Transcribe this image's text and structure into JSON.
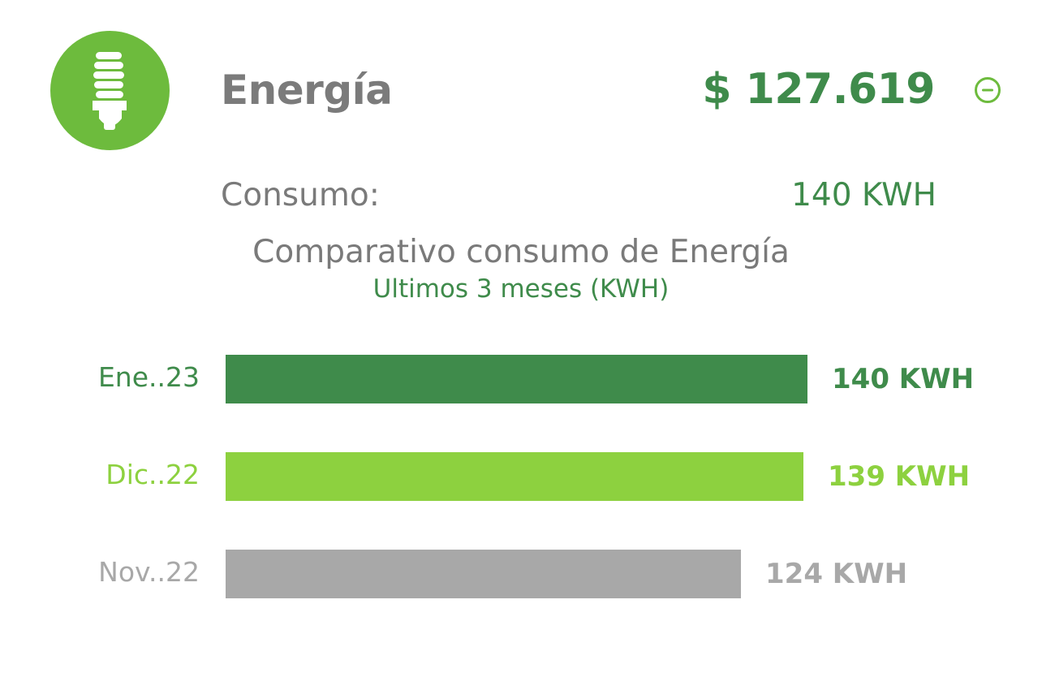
{
  "header": {
    "icon": "lightbulb-icon",
    "title": "Energía",
    "amount": "$ 127.619",
    "collapse_icon": "minus-circle-icon"
  },
  "summary": {
    "label": "Consumo:",
    "value": "140 KWH"
  },
  "colors": {
    "brand_green": "#6dbb3d",
    "dark_green": "#3f8b4b",
    "light_green": "#8dd13f",
    "gray": "#a8a8a8",
    "text_gray": "#7a7a7a"
  },
  "chart_data": {
    "type": "bar",
    "orientation": "horizontal",
    "title": "Comparativo consumo de Energía",
    "subtitle": "Ultimos 3 meses (KWH)",
    "categories": [
      "Ene..23",
      "Dic..22",
      "Nov..22"
    ],
    "values": [
      140,
      139,
      124
    ],
    "value_labels": [
      "140 KWH",
      "139 KWH",
      "124 KWH"
    ],
    "bar_colors": [
      "#3f8b4b",
      "#8dd13f",
      "#a8a8a8"
    ],
    "label_colors": [
      "#3f8b4b",
      "#8dd13f",
      "#a8a8a8"
    ],
    "xlim": [
      0,
      140
    ]
  }
}
